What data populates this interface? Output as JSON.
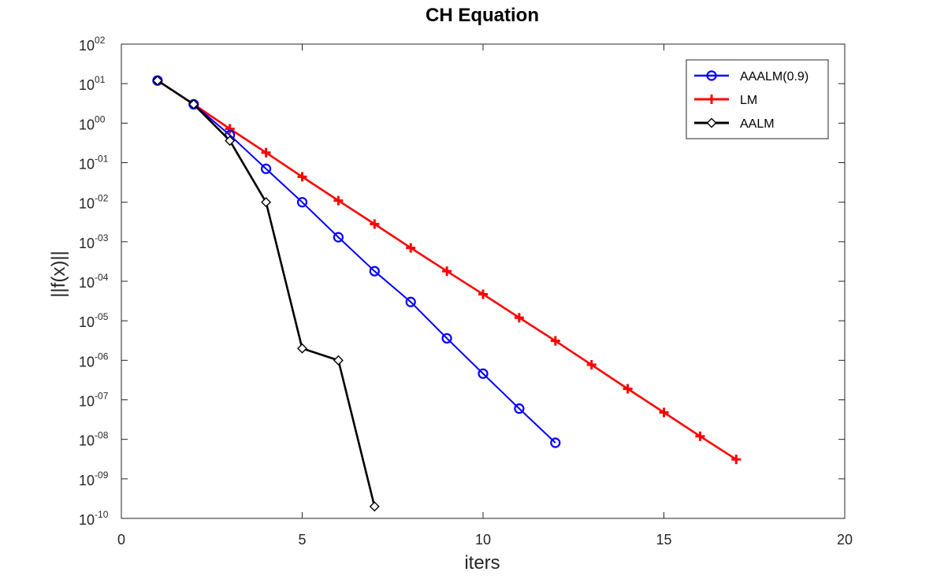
{
  "chart_data": {
    "type": "line",
    "title": "CH Equation",
    "xlabel": "iters",
    "ylabel": "||f(x)||",
    "xlim": [
      0,
      20
    ],
    "ylim": [
      1e-10,
      100
    ],
    "yscale": "log",
    "xticks": [
      0,
      5,
      10,
      15,
      20
    ],
    "yticks": [
      {
        "base": "10",
        "exp": "-10"
      },
      {
        "base": "10",
        "exp": "-09"
      },
      {
        "base": "10",
        "exp": "-08"
      },
      {
        "base": "10",
        "exp": "-07"
      },
      {
        "base": "10",
        "exp": "-06"
      },
      {
        "base": "10",
        "exp": "-05"
      },
      {
        "base": "10",
        "exp": "-04"
      },
      {
        "base": "10",
        "exp": "-03"
      },
      {
        "base": "10",
        "exp": "-02"
      },
      {
        "base": "10",
        "exp": "-01"
      },
      {
        "base": "10",
        "exp": "00"
      },
      {
        "base": "10",
        "exp": "01"
      },
      {
        "base": "10",
        "exp": "02"
      }
    ],
    "grid": false,
    "legend_position": "top-right",
    "series": [
      {
        "name": "AAALM(0.9)",
        "color": "#0000ff",
        "marker": "circle",
        "x": [
          1,
          2,
          3,
          4,
          5,
          6,
          7,
          8,
          9,
          10,
          11,
          12
        ],
        "y": [
          12,
          3,
          0.5,
          0.07,
          0.01,
          0.0013,
          0.00018,
          3e-05,
          3.6e-06,
          4.6e-07,
          6e-08,
          8.2e-09
        ]
      },
      {
        "name": "LM",
        "color": "#ff0000",
        "marker": "plus",
        "x": [
          1,
          2,
          3,
          4,
          5,
          6,
          7,
          8,
          9,
          10,
          11,
          12,
          13,
          14,
          15,
          16,
          17
        ],
        "y": [
          12,
          3,
          0.72,
          0.18,
          0.044,
          0.011,
          0.0028,
          0.0007,
          0.00018,
          4.7e-05,
          1.2e-05,
          3.1e-06,
          7.7e-07,
          1.9e-07,
          4.8e-08,
          1.2e-08,
          3.1e-09
        ]
      },
      {
        "name": "AALM",
        "color": "#000000",
        "marker": "diamond",
        "x": [
          1,
          2,
          3,
          4,
          5,
          6,
          7
        ],
        "y": [
          12,
          3,
          0.36,
          0.01,
          2e-06,
          1e-06,
          2e-10
        ]
      }
    ]
  }
}
